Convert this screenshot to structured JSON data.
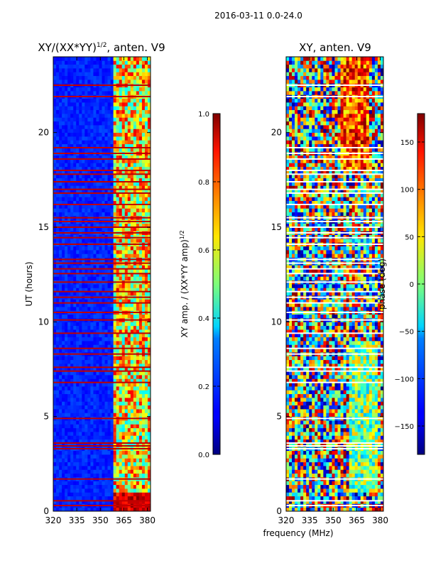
{
  "chart_data": {
    "type": "heatmap",
    "suptitle": "2016-03-11 0.0-24.0",
    "shared_xlabel": "frequency (MHz)",
    "panels": [
      {
        "title": "XY/(XX*YY)^{1/2}, anten. V9",
        "title_main": "XY/(XX*YY)",
        "title_sup": "1/2",
        "title_tail": ", anten. V9",
        "xlim": [
          320,
          382
        ],
        "ylim": [
          0,
          24
        ],
        "xticks": [
          320,
          335,
          350,
          365,
          380
        ],
        "yticks": [
          0,
          5,
          10,
          15,
          20
        ],
        "ylabel": "UT (hours)",
        "colorbar": {
          "label": "XY amp. / (XX*YY amp)^{1/2}",
          "label_main": "XY amp. / (XX*YY amp)",
          "label_sup": "1/2",
          "range": [
            0.0,
            1.0
          ],
          "ticks": [
            "0.0",
            "0.2",
            "0.4",
            "0.6",
            "0.8",
            "1.0"
          ]
        },
        "flagged_hours": [
          0.3,
          0.55,
          1.7,
          3.3,
          3.45,
          3.6,
          4.9,
          6.8,
          7.4,
          7.6,
          8.3,
          8.6,
          9.4,
          10.1,
          10.5,
          11.0,
          11.3,
          11.6,
          12.1,
          12.55,
          12.8,
          13.1,
          13.3,
          14.1,
          14.45,
          14.7,
          15.0,
          15.3,
          15.5,
          16.2,
          16.8,
          17.0,
          17.4,
          17.8,
          18.0,
          18.6,
          18.9,
          19.2,
          21.9,
          22.5
        ]
      },
      {
        "title": "XY, anten. V9",
        "xlim": [
          320,
          382
        ],
        "ylim": [
          0,
          24
        ],
        "xticks": [
          320,
          335,
          350,
          365,
          380
        ],
        "yticks": [
          0,
          5,
          10,
          15,
          20
        ],
        "colorbar": {
          "label": "phase (deg)",
          "range": [
            -180,
            180
          ],
          "ticks": [
            "−150",
            "−100",
            "−50",
            "0",
            "50",
            "100",
            "150"
          ]
        },
        "flagged_hours": [
          0.3,
          0.55,
          1.7,
          3.3,
          3.45,
          3.6,
          4.9,
          6.8,
          7.4,
          7.6,
          8.3,
          8.6,
          9.4,
          10.1,
          10.5,
          11.0,
          11.3,
          11.6,
          12.1,
          12.55,
          12.8,
          13.1,
          13.3,
          14.1,
          14.45,
          14.7,
          15.0,
          15.3,
          15.5,
          16.2,
          16.8,
          17.0,
          17.4,
          17.8,
          18.0,
          18.6,
          18.9,
          19.2,
          21.9,
          22.5
        ]
      }
    ]
  }
}
